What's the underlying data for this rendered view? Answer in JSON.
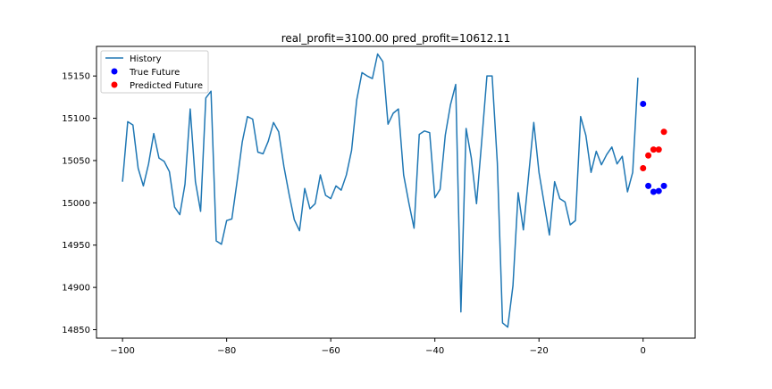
{
  "chart_data": {
    "type": "line",
    "title": "real_profit=3100.00 pred_profit=10612.11",
    "xlabel": "",
    "ylabel": "",
    "xlim": [
      -105,
      10
    ],
    "ylim": [
      14840,
      15185
    ],
    "x_ticks": [
      -100,
      -80,
      -60,
      -40,
      -20,
      0
    ],
    "x_tick_labels": [
      "−100",
      "−80",
      "−60",
      "−40",
      "−20",
      "0"
    ],
    "y_ticks": [
      14850,
      14900,
      14950,
      15000,
      15050,
      15100,
      15150
    ],
    "y_tick_labels": [
      "14850",
      "14900",
      "14950",
      "15000",
      "15050",
      "15100",
      "15150"
    ],
    "grid": false,
    "legend_position": "upper-left",
    "series": [
      {
        "name": "History",
        "type": "line",
        "color": "#1f77b4",
        "x": [
          -100,
          -99,
          -98,
          -97,
          -96,
          -95,
          -94,
          -93,
          -92,
          -91,
          -90,
          -89,
          -88,
          -87,
          -86,
          -85,
          -84,
          -83,
          -82,
          -81,
          -80,
          -79,
          -78,
          -77,
          -76,
          -75,
          -74,
          -73,
          -72,
          -71,
          -70,
          -69,
          -68,
          -67,
          -66,
          -65,
          -64,
          -63,
          -62,
          -61,
          -60,
          -59,
          -58,
          -57,
          -56,
          -55,
          -54,
          -53,
          -52,
          -51,
          -50,
          -49,
          -48,
          -47,
          -46,
          -45,
          -44,
          -43,
          -42,
          -41,
          -40,
          -39,
          -38,
          -37,
          -36,
          -35,
          -34,
          -33,
          -32,
          -31,
          -30,
          -29,
          -28,
          -27,
          -26,
          -25,
          -24,
          -23,
          -22,
          -21,
          -20,
          -19,
          -18,
          -17,
          -16,
          -15,
          -14,
          -13,
          -12,
          -11,
          -10,
          -9,
          -8,
          -7,
          -6,
          -5,
          -4,
          -3,
          -2,
          -1
        ],
        "y": [
          15025,
          15096,
          15092,
          15041,
          15020,
          15046,
          15082,
          15053,
          15049,
          15037,
          14995,
          14986,
          15022,
          15111,
          15025,
          14990,
          15124,
          15132,
          14955,
          14951,
          14979,
          14981,
          15025,
          15072,
          15102,
          15099,
          15060,
          15058,
          15073,
          15095,
          15084,
          15043,
          15010,
          14980,
          14967,
          15017,
          14993,
          14999,
          15033,
          15009,
          15005,
          15020,
          15015,
          15033,
          15062,
          15122,
          15154,
          15150,
          15147,
          15176,
          15167,
          15093,
          15106,
          15111,
          15033,
          15000,
          14970,
          15081,
          15085,
          15083,
          15006,
          15016,
          15080,
          15116,
          15140,
          14871,
          15088,
          15053,
          14999,
          15073,
          15150,
          15150,
          15047,
          14858,
          14853,
          14902,
          15012,
          14968,
          15032,
          15095,
          15036,
          14999,
          14962,
          15025,
          15005,
          15001,
          14974,
          14979,
          15102,
          15080,
          15036,
          15061,
          15045,
          15057,
          15066,
          15046,
          15055,
          15013,
          15036,
          15148
        ]
      },
      {
        "name": "True Future",
        "type": "scatter",
        "color": "#0000ff",
        "x": [
          0,
          1,
          2,
          3,
          4
        ],
        "y": [
          15117,
          15020,
          15013,
          15014,
          15020
        ]
      },
      {
        "name": "Predicted Future",
        "type": "scatter",
        "color": "#ff0000",
        "x": [
          0,
          1,
          2,
          3,
          4
        ],
        "y": [
          15041,
          15056,
          15063,
          15063,
          15084
        ]
      }
    ]
  }
}
